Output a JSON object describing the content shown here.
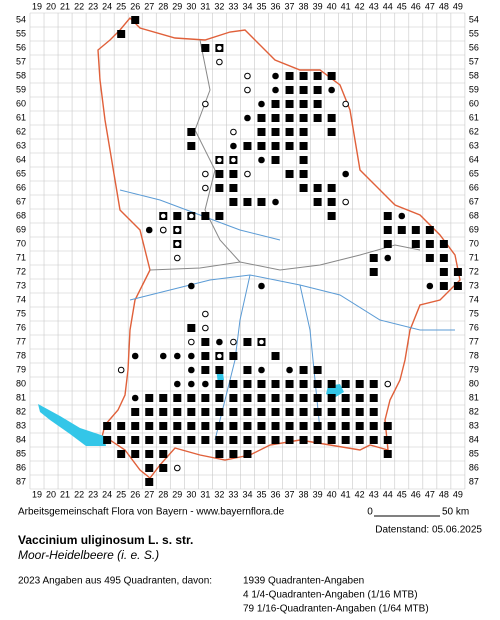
{
  "map": {
    "grid": {
      "columns": [
        19,
        20,
        21,
        22,
        23,
        24,
        25,
        26,
        27,
        28,
        29,
        30,
        31,
        32,
        33,
        34,
        35,
        36,
        37,
        38,
        39,
        40,
        41,
        42,
        43,
        44,
        45,
        46,
        47,
        48,
        49
      ],
      "rows": [
        54,
        55,
        56,
        57,
        58,
        59,
        60,
        61,
        62,
        63,
        64,
        65,
        66,
        67,
        68,
        69,
        70,
        71,
        72,
        73,
        74,
        75,
        76,
        77,
        78,
        79,
        80,
        81,
        82,
        83,
        84,
        85,
        86,
        87
      ]
    },
    "records": [
      {
        "row": 54,
        "squares": [
          26
        ]
      },
      {
        "row": 55,
        "squares": [
          25
        ]
      },
      {
        "row": 56,
        "squares": [
          31,
          32
        ],
        "circles": [
          32
        ]
      },
      {
        "row": 57,
        "circles": [
          32
        ]
      },
      {
        "row": 58,
        "squares": [
          37,
          38,
          39,
          40
        ],
        "dots": [
          36
        ],
        "circles": [
          34
        ]
      },
      {
        "row": 59,
        "squares": [
          37,
          38,
          39
        ],
        "dots": [
          36,
          40
        ],
        "circles": [
          34
        ]
      },
      {
        "row": 60,
        "squares": [
          36,
          37,
          38,
          39
        ],
        "dots": [
          35
        ],
        "circles": [
          31,
          41
        ]
      },
      {
        "row": 61,
        "squares": [
          35,
          36,
          37,
          38,
          39,
          40
        ],
        "dots": [
          34
        ]
      },
      {
        "row": 62,
        "squares": [
          30,
          35,
          36,
          37,
          38,
          40
        ],
        "circles": [
          33
        ]
      },
      {
        "row": 63,
        "squares": [
          30,
          34,
          35,
          36,
          37,
          38
        ],
        "dots": [
          33
        ]
      },
      {
        "row": 64,
        "squares": [
          32,
          33,
          36,
          38
        ],
        "dots": [
          35
        ],
        "circles": [
          32,
          33
        ]
      },
      {
        "row": 65,
        "squares": [
          32,
          33,
          37,
          38
        ],
        "dots": [
          41
        ],
        "circles": [
          31,
          34
        ]
      },
      {
        "row": 66,
        "squares": [
          32,
          33,
          38,
          39,
          40
        ],
        "dots": [
          33
        ],
        "circles": [
          31
        ]
      },
      {
        "row": 67,
        "squares": [
          33,
          34,
          35,
          39,
          40
        ],
        "dots": [
          36
        ],
        "circles": [
          41
        ]
      },
      {
        "row": 68,
        "squares": [
          28,
          29,
          30,
          31,
          32,
          40,
          44
        ],
        "dots": [
          45
        ],
        "circles": [
          28,
          30
        ]
      },
      {
        "row": 69,
        "squares": [
          29,
          44,
          45,
          46,
          47
        ],
        "dots": [
          27,
          28
        ],
        "circles": [
          28,
          29
        ]
      },
      {
        "row": 70,
        "squares": [
          29,
          44,
          46,
          47,
          48
        ],
        "circles": [
          29
        ]
      },
      {
        "row": 71,
        "squares": [
          43,
          47,
          48
        ],
        "dots": [
          44
        ],
        "circles": [
          29
        ]
      },
      {
        "row": 72,
        "squares": [
          43,
          48,
          49
        ]
      },
      {
        "row": 73,
        "squares": [
          48,
          49
        ],
        "dots": [
          30,
          35,
          47
        ]
      },
      {
        "row": 75,
        "circles": [
          31
        ]
      },
      {
        "row": 76,
        "squares": [
          30
        ],
        "circles": [
          31
        ]
      },
      {
        "row": 77,
        "squares": [
          31,
          34,
          35
        ],
        "dots": [
          32
        ],
        "circles": [
          30,
          33,
          35
        ]
      },
      {
        "row": 78,
        "squares": [
          31,
          32,
          33,
          36
        ],
        "dots": [
          26,
          28,
          29,
          30
        ],
        "circles": [
          32
        ]
      },
      {
        "row": 79,
        "squares": [
          31,
          32,
          34,
          38,
          39
        ],
        "dots": [
          30,
          35,
          37
        ],
        "circles": [
          25
        ]
      },
      {
        "row": 80,
        "squares": [
          32,
          33,
          34,
          35,
          36,
          37,
          38,
          39,
          40,
          41,
          42,
          43
        ],
        "dots": [
          29,
          30,
          31
        ],
        "circles": [
          44
        ]
      },
      {
        "row": 81,
        "squares": [
          27,
          28,
          29,
          30,
          31,
          32,
          33,
          34,
          35,
          36,
          37,
          38,
          39,
          40,
          41,
          42,
          43
        ],
        "dots": [
          26
        ]
      },
      {
        "row": 82,
        "squares": [
          26,
          27,
          28,
          29,
          30,
          31,
          32,
          33,
          34,
          35,
          36,
          37,
          38,
          39,
          40,
          41,
          42,
          43
        ]
      },
      {
        "row": 83,
        "squares": [
          24,
          25,
          26,
          27,
          28,
          29,
          30,
          31,
          32,
          33,
          34,
          35,
          36,
          37,
          38,
          39,
          40,
          41,
          42,
          43,
          44
        ]
      },
      {
        "row": 84,
        "squares": [
          24,
          25,
          26,
          27,
          28,
          29,
          30,
          31,
          32,
          33,
          34,
          35,
          36,
          37,
          38,
          39,
          40,
          41,
          42,
          43,
          44
        ]
      },
      {
        "row": 85,
        "squares": [
          25,
          26,
          27,
          28,
          32,
          33,
          34,
          44
        ]
      },
      {
        "row": 86,
        "squares": [
          27,
          28
        ],
        "circles": [
          29
        ]
      },
      {
        "row": 87,
        "squares": [
          27
        ]
      }
    ],
    "credit": "Arbeitsgemeinschaft Flora von Bayern - www.bayernflora.de",
    "scale": {
      "start": "0",
      "end": "50 km"
    },
    "date": "Datenstand: 05.06.2025",
    "species": "Vaccinium uliginosum L. s. str.",
    "common_name": "Moor-Heidelbeere (i. e. S.)",
    "summary": "2023 Angaben aus 495 Quadranten, davon:",
    "breakdown": [
      "1939 Quadranten-Angaben",
      "4 1/4-Quadranten-Angaben (1/16 MTB)",
      "79 1/16-Quadranten-Angaben (1/64 MTB)"
    ]
  }
}
